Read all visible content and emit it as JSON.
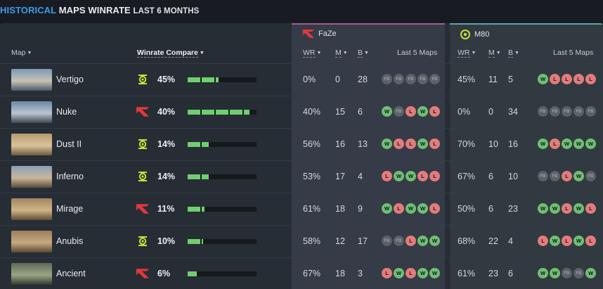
{
  "title": {
    "highlight": "HISTORICAL",
    "main": "MAPS WINRATE",
    "sub": "LAST 6 MONTHS"
  },
  "header": {
    "map": "Map",
    "winrate_compare": "Winrate Compare",
    "faze_team": "FaZe",
    "m80_team": "M80",
    "wr": "WR",
    "m": "M",
    "b": "B",
    "last5": "Last 5 Maps"
  },
  "rows": [
    {
      "map": "Vertigo",
      "icon": "m80-icon",
      "pct": "45%",
      "fill": 0.45,
      "faze": {
        "wr": "0%",
        "m": "0",
        "b": "28",
        "last5": [
          "FB",
          "FB",
          "FB",
          "FB",
          "FB"
        ]
      },
      "m80": {
        "wr": "45%",
        "m": "11",
        "b": "5",
        "last5": [
          "W",
          "L",
          "L",
          "L",
          "L"
        ]
      }
    },
    {
      "map": "Nuke",
      "icon": "faze-icon",
      "pct": "40%",
      "fill": 0.9,
      "faze": {
        "wr": "40%",
        "m": "15",
        "b": "6",
        "last5": [
          "W",
          "FB",
          "L",
          "W",
          "L"
        ]
      },
      "m80": {
        "wr": "0%",
        "m": "0",
        "b": "34",
        "last5": [
          "FB",
          "FB",
          "FB",
          "FB",
          "FB"
        ]
      }
    },
    {
      "map": "Dust II",
      "icon": "m80-icon",
      "pct": "14%",
      "fill": 0.31,
      "faze": {
        "wr": "56%",
        "m": "16",
        "b": "13",
        "last5": [
          "W",
          "L",
          "L",
          "W",
          "L"
        ]
      },
      "m80": {
        "wr": "70%",
        "m": "10",
        "b": "16",
        "last5": [
          "W",
          "L",
          "W",
          "W",
          "W"
        ]
      }
    },
    {
      "map": "Inferno",
      "icon": "m80-icon",
      "pct": "14%",
      "fill": 0.31,
      "faze": {
        "wr": "53%",
        "m": "17",
        "b": "4",
        "last5": [
          "L",
          "W",
          "W",
          "L",
          "L"
        ]
      },
      "m80": {
        "wr": "67%",
        "m": "6",
        "b": "10",
        "last5": [
          "FB",
          "FB",
          "L",
          "W",
          "FB"
        ]
      }
    },
    {
      "map": "Mirage",
      "icon": "faze-icon",
      "pct": "11%",
      "fill": 0.24,
      "faze": {
        "wr": "61%",
        "m": "18",
        "b": "9",
        "last5": [
          "W",
          "L",
          "W",
          "W",
          "L"
        ]
      },
      "m80": {
        "wr": "50%",
        "m": "6",
        "b": "23",
        "last5": [
          "W",
          "W",
          "L",
          "W",
          "L"
        ]
      }
    },
    {
      "map": "Anubis",
      "icon": "m80-icon",
      "pct": "10%",
      "fill": 0.22,
      "faze": {
        "wr": "58%",
        "m": "12",
        "b": "17",
        "last5": [
          "FB",
          "FB",
          "L",
          "W",
          "W"
        ]
      },
      "m80": {
        "wr": "68%",
        "m": "22",
        "b": "4",
        "last5": [
          "L",
          "W",
          "L",
          "W",
          "L"
        ]
      }
    },
    {
      "map": "Ancient",
      "icon": "faze-icon",
      "pct": "6%",
      "fill": 0.13,
      "faze": {
        "wr": "67%",
        "m": "18",
        "b": "3",
        "last5": [
          "L",
          "W",
          "L",
          "W",
          "W"
        ]
      },
      "m80": {
        "wr": "61%",
        "m": "23",
        "b": "6",
        "last5": [
          "W",
          "W",
          "FB",
          "FB",
          "W"
        ]
      }
    }
  ],
  "colors": {
    "accent": "#3d9be9",
    "bar": "#6fcf6f",
    "win": "#6fbf73",
    "loss": "#e37c7c",
    "faze_line": "#a45a8d",
    "m80_line": "#5aa6a6"
  }
}
